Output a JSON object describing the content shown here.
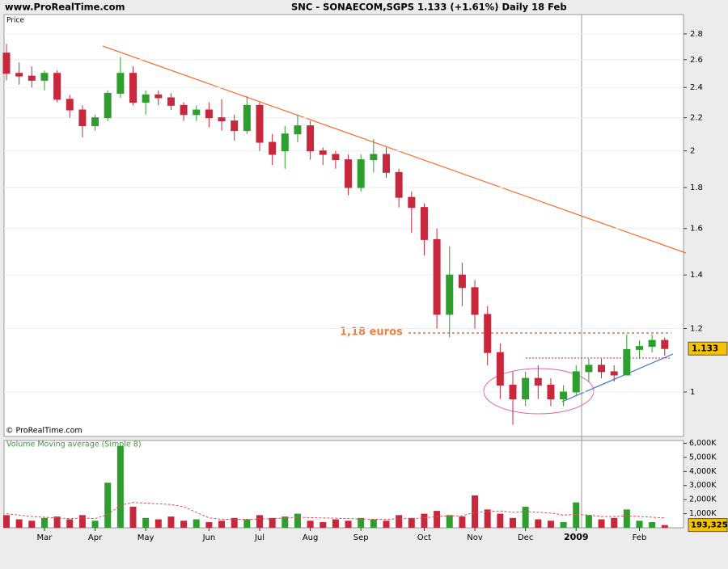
{
  "header": {
    "site": "www.ProRealTime.com"
  },
  "chart_data": [
    {
      "type": "candlestick",
      "title": "SNC - SONAECOM,SGPS   1.133 (+1.61%)   Daily  18 Feb",
      "y_label": "Price",
      "credit": "© ProRealTime.com",
      "annotation": "1,18 euros",
      "categories": [
        null,
        null,
        null,
        "Mar",
        null,
        null,
        null,
        "Apr",
        null,
        null,
        null,
        "May",
        null,
        null,
        null,
        null,
        "Jun",
        null,
        null,
        null,
        "Jul",
        null,
        null,
        null,
        "Aug",
        null,
        null,
        null,
        "Sep",
        null,
        null,
        null,
        null,
        "Oct",
        null,
        null,
        null,
        "Nov",
        null,
        null,
        null,
        "Dec",
        null,
        null,
        null,
        "2009",
        null,
        null,
        null,
        null,
        "Feb",
        null,
        null
      ],
      "open": [
        2.65,
        2.5,
        2.48,
        2.45,
        2.5,
        2.32,
        2.25,
        2.15,
        2.2,
        2.36,
        2.5,
        2.3,
        2.35,
        2.33,
        2.28,
        2.22,
        2.25,
        2.2,
        2.18,
        2.12,
        2.28,
        2.05,
        2.0,
        2.1,
        2.15,
        2.0,
        1.98,
        1.95,
        1.8,
        1.95,
        1.98,
        1.88,
        1.75,
        1.7,
        1.55,
        1.25,
        1.4,
        1.35,
        1.25,
        1.12,
        1.02,
        0.98,
        1.04,
        1.02,
        0.98,
        1.0,
        1.06,
        1.08,
        1.06,
        1.05,
        1.13,
        1.14,
        1.16
      ],
      "high": [
        2.72,
        2.58,
        2.55,
        2.52,
        2.52,
        2.35,
        2.28,
        2.22,
        2.38,
        2.62,
        2.55,
        2.38,
        2.38,
        2.36,
        2.3,
        2.28,
        2.3,
        2.32,
        2.22,
        2.34,
        2.3,
        2.1,
        2.15,
        2.22,
        2.18,
        2.02,
        2.0,
        1.98,
        1.98,
        2.07,
        2.02,
        1.9,
        1.78,
        1.72,
        1.6,
        1.52,
        1.45,
        1.38,
        1.28,
        1.15,
        1.06,
        1.06,
        1.08,
        1.04,
        1.02,
        1.08,
        1.1,
        1.1,
        1.08,
        1.18,
        1.16,
        1.18,
        1.17
      ],
      "low": [
        2.45,
        2.42,
        2.4,
        2.38,
        2.3,
        2.2,
        2.08,
        2.12,
        2.18,
        2.33,
        2.28,
        2.22,
        2.28,
        2.25,
        2.18,
        2.18,
        2.14,
        2.12,
        2.06,
        2.1,
        2.0,
        1.92,
        1.9,
        2.05,
        1.95,
        1.92,
        1.9,
        1.76,
        1.78,
        1.88,
        1.85,
        1.7,
        1.58,
        1.48,
        1.2,
        1.17,
        1.28,
        1.2,
        1.08,
        0.98,
        0.91,
        0.96,
        0.98,
        0.96,
        0.96,
        0.99,
        1.03,
        1.04,
        1.03,
        1.05,
        1.1,
        1.12,
        1.11
      ],
      "close": [
        2.5,
        2.48,
        2.45,
        2.5,
        2.32,
        2.25,
        2.15,
        2.2,
        2.36,
        2.5,
        2.3,
        2.35,
        2.33,
        2.28,
        2.22,
        2.25,
        2.2,
        2.18,
        2.12,
        2.28,
        2.05,
        1.98,
        2.1,
        2.15,
        2.0,
        1.98,
        1.95,
        1.8,
        1.95,
        1.98,
        1.88,
        1.75,
        1.7,
        1.55,
        1.25,
        1.4,
        1.35,
        1.25,
        1.12,
        1.02,
        0.98,
        1.04,
        1.02,
        0.98,
        1.0,
        1.06,
        1.08,
        1.06,
        1.05,
        1.13,
        1.14,
        1.16,
        1.133
      ],
      "up_color": "#2e9e2e",
      "down_color": "#c8283c",
      "log_scale": true,
      "ylim": [
        0.88,
        2.96
      ],
      "yticks": [
        1,
        1.2,
        1.4,
        1.6,
        1.8,
        2,
        2.2,
        2.4,
        2.6,
        2.8
      ]
    },
    {
      "type": "bar",
      "title": "Volume Moving average (Simple 8)",
      "ma_color": "#e05050",
      "values": [
        900000,
        600000,
        500000,
        700000,
        800000,
        600000,
        900000,
        500000,
        3200000,
        5800000,
        1500000,
        700000,
        600000,
        800000,
        500000,
        600000,
        400000,
        500000,
        700000,
        600000,
        900000,
        700000,
        800000,
        1000000,
        500000,
        400000,
        600000,
        500000,
        700000,
        600000,
        500000,
        900000,
        700000,
        1000000,
        1200000,
        900000,
        800000,
        2300000,
        1300000,
        1000000,
        700000,
        1500000,
        600000,
        500000,
        400000,
        1800000,
        900000,
        600000,
        700000,
        1300000,
        500000,
        400000,
        193325
      ],
      "last_label": "193,325",
      "moving_average": [
        1000000,
        900000,
        800000,
        750000,
        700000,
        650000,
        700000,
        650000,
        950000,
        1600000,
        1800000,
        1750000,
        1700000,
        1650000,
        1500000,
        1100000,
        700000,
        600000,
        600000,
        600000,
        620000,
        650000,
        700000,
        750000,
        720000,
        700000,
        680000,
        650000,
        620000,
        600000,
        600000,
        650000,
        650000,
        700000,
        800000,
        850000,
        850000,
        1100000,
        1150000,
        1200000,
        1100000,
        1150000,
        1100000,
        1050000,
        900000,
        950000,
        900000,
        800000,
        800000,
        850000,
        800000,
        750000,
        700000
      ],
      "ylim": [
        0,
        6200000
      ],
      "yticks": [
        {
          "value": 1000000,
          "label": "1,000K"
        },
        {
          "value": 2000000,
          "label": "2,000K"
        },
        {
          "value": 3000000,
          "label": "3,000K"
        },
        {
          "value": 4000000,
          "label": "4,000K"
        },
        {
          "value": 5000000,
          "label": "5,000K"
        },
        {
          "value": 6000000,
          "label": "6,000K"
        }
      ]
    }
  ]
}
